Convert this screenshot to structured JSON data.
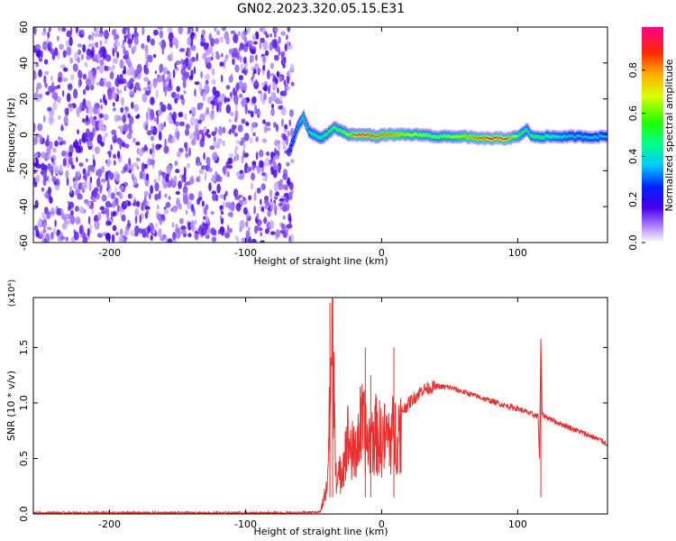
{
  "figure_title": "GN02.2023.320.05.15.E31",
  "chart_data": [
    {
      "type": "heatmap",
      "title": "GN02.2023.320.05.15.E31",
      "xlabel": "Height of straight line (km)",
      "ylabel": "Frequency (Hz)",
      "xlim": [
        -256,
        166
      ],
      "ylim": [
        -60,
        60
      ],
      "xticks": [
        -200,
        -100,
        0,
        100
      ],
      "yticks": [
        60,
        40,
        20,
        0,
        -20,
        -40,
        -60
      ],
      "colorbar": {
        "label": "Normalized spectral amplitude",
        "range": [
          0.0,
          1.0
        ],
        "ticks": [
          0.0,
          0.2,
          0.4,
          0.6,
          0.8
        ]
      },
      "noise_region_x": [
        -256,
        -68
      ],
      "signal_ridge": {
        "x": [
          -68,
          -62,
          -58,
          -54,
          -50,
          -45,
          -40,
          -35,
          -30,
          -25,
          -20,
          -15,
          -10,
          -5,
          0,
          10,
          20,
          30,
          40,
          50,
          60,
          70,
          80,
          90,
          100,
          106,
          110,
          120,
          130,
          140,
          150,
          166
        ],
        "frequency": [
          -8,
          5,
          10,
          2,
          0,
          -2,
          1,
          4,
          2,
          0,
          0,
          0,
          0,
          -1,
          0,
          0,
          0,
          0,
          -1,
          -1,
          -1,
          -2,
          -2,
          -2,
          -1,
          3,
          -1,
          -1,
          -1,
          -1,
          -1,
          -1
        ],
        "amplitude": [
          0.3,
          0.4,
          0.5,
          0.45,
          0.5,
          0.5,
          0.55,
          0.6,
          0.6,
          0.7,
          0.9,
          0.95,
          0.9,
          0.85,
          0.85,
          0.8,
          0.7,
          0.65,
          0.6,
          0.65,
          0.75,
          0.85,
          0.95,
          0.9,
          0.6,
          0.5,
          0.55,
          0.5,
          0.45,
          0.4,
          0.4,
          0.4
        ]
      },
      "grid": false
    },
    {
      "type": "line",
      "xlabel": "Height of straight line (km)",
      "ylabel": "SNR (10 * v/v)",
      "y_multiplier_label": "(x10⁴)",
      "xlim": [
        -256,
        166
      ],
      "ylim": [
        0.0,
        1.95
      ],
      "xticks": [
        -200,
        -100,
        0,
        100
      ],
      "yticks": [
        0.0,
        0.5,
        1.0,
        1.5
      ],
      "series": [
        {
          "color": "#e8312f",
          "x": [
            -256,
            -200,
            -150,
            -100,
            -60,
            -45,
            -40,
            -36,
            -33,
            -30,
            -25,
            -20,
            -15,
            -10,
            -5,
            0,
            10,
            20,
            30,
            40,
            50,
            60,
            70,
            80,
            90,
            100,
            110,
            115,
            116,
            117,
            118,
            120,
            130,
            140,
            150,
            160,
            166
          ],
          "values": [
            0.01,
            0.01,
            0.01,
            0.01,
            0.01,
            0.02,
            0.3,
            1.9,
            0.3,
            0.45,
            0.8,
            0.6,
            0.95,
            0.75,
            0.85,
            0.78,
            0.85,
            1.0,
            1.12,
            1.15,
            1.14,
            1.1,
            1.06,
            1.02,
            0.98,
            0.95,
            0.9,
            0.88,
            0.5,
            1.55,
            0.9,
            0.88,
            0.82,
            0.77,
            0.72,
            0.67,
            0.63
          ],
          "spikes": [
            {
              "x": -38,
              "y": 1.9
            },
            {
              "x": -36,
              "y": 1.75
            },
            {
              "x": -12,
              "y": 1.5
            },
            {
              "x": -8,
              "y": 1.25
            },
            {
              "x": 9,
              "y": 1.5
            },
            {
              "x": 117,
              "y": 1.58
            }
          ]
        }
      ],
      "grid": false
    }
  ]
}
